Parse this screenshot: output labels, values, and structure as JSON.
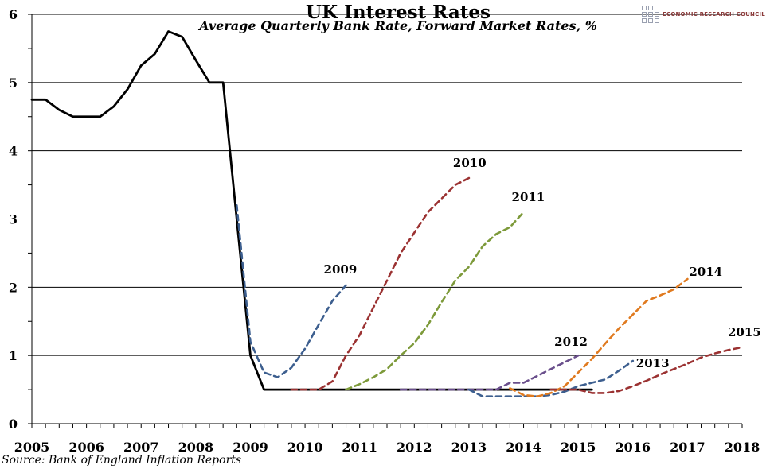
{
  "header": {
    "title": "UK Interest Rates",
    "subtitle": "Average Quarterly Bank Rate, Forward Market Rates, %",
    "logo_text": "ECONOMIC RESEARCH COUNCIL"
  },
  "footer": {
    "source": "Source: Bank of England Inflation Reports"
  },
  "chart_data": {
    "type": "line",
    "title": "UK Interest Rates",
    "subtitle": "Average Quarterly Bank Rate, Forward Market Rates, %",
    "xlabel": "",
    "ylabel": "",
    "xlim": [
      2005,
      2018
    ],
    "ylim": [
      0,
      6
    ],
    "x_ticks": [
      "2005",
      "2006",
      "2007",
      "2008",
      "2009",
      "2010",
      "2011",
      "2012",
      "2013",
      "2014",
      "2015",
      "2016",
      "2017",
      "2018"
    ],
    "y_ticks": [
      "0",
      "1",
      "2",
      "3",
      "4",
      "5",
      "6"
    ],
    "grid": "horizontal",
    "legend": "none",
    "series": [
      {
        "name": "",
        "style": "solid",
        "color": "#000000",
        "x": [
          2005.0,
          2005.25,
          2005.5,
          2005.75,
          2006.0,
          2006.25,
          2006.5,
          2006.75,
          2007.0,
          2007.25,
          2007.5,
          2007.75,
          2008.0,
          2008.25,
          2008.5,
          2008.75,
          2009.0,
          2009.25,
          2009.5,
          2009.75,
          2010.0,
          2010.25,
          2010.5,
          2010.75,
          2011.0,
          2011.25,
          2011.5,
          2011.75,
          2012.0,
          2012.25,
          2012.5,
          2012.75,
          2013.0,
          2013.25,
          2013.5,
          2013.75,
          2014.0,
          2014.25,
          2014.5,
          2014.75,
          2015.0,
          2015.25
        ],
        "y": [
          4.75,
          4.75,
          4.6,
          4.5,
          4.5,
          4.5,
          4.65,
          4.9,
          5.25,
          5.42,
          5.75,
          5.67,
          5.33,
          5.0,
          5.0,
          3.0,
          1.0,
          0.5,
          0.5,
          0.5,
          0.5,
          0.5,
          0.5,
          0.5,
          0.5,
          0.5,
          0.5,
          0.5,
          0.5,
          0.5,
          0.5,
          0.5,
          0.5,
          0.5,
          0.5,
          0.5,
          0.5,
          0.5,
          0.5,
          0.5,
          0.5,
          0.5
        ]
      },
      {
        "name": "2009",
        "style": "dashed",
        "color": "#3d5f8f",
        "x": [
          2008.75,
          2009.0,
          2009.25,
          2009.5,
          2009.75,
          2010.0,
          2010.25,
          2010.5,
          2010.75
        ],
        "y": [
          3.2,
          1.2,
          0.75,
          0.68,
          0.82,
          1.1,
          1.45,
          1.8,
          2.03
        ]
      },
      {
        "name": "2010",
        "style": "dashed",
        "color": "#9b3232",
        "x": [
          2009.75,
          2010.0,
          2010.25,
          2010.5,
          2010.75,
          2011.0,
          2011.25,
          2011.5,
          2011.75,
          2012.0,
          2012.25,
          2012.5,
          2012.75,
          2013.0
        ],
        "y": [
          0.5,
          0.5,
          0.5,
          0.62,
          1.0,
          1.3,
          1.7,
          2.1,
          2.5,
          2.8,
          3.1,
          3.3,
          3.5,
          3.6
        ]
      },
      {
        "name": "2011",
        "style": "dashed",
        "color": "#7d9a3a",
        "x": [
          2010.75,
          2011.0,
          2011.25,
          2011.5,
          2011.75,
          2012.0,
          2012.25,
          2012.5,
          2012.75,
          2013.0,
          2013.25,
          2013.5,
          2013.75,
          2014.0
        ],
        "y": [
          0.5,
          0.58,
          0.68,
          0.8,
          1.0,
          1.18,
          1.45,
          1.78,
          2.1,
          2.3,
          2.6,
          2.78,
          2.88,
          3.1
        ]
      },
      {
        "name": "2012",
        "style": "dashed",
        "color": "#6a4f8c",
        "x": [
          2011.75,
          2012.0,
          2012.25,
          2012.5,
          2012.75,
          2013.0,
          2013.25,
          2013.5,
          2013.75,
          2014.0,
          2014.25,
          2014.5,
          2014.75,
          2015.0
        ],
        "y": [
          0.5,
          0.5,
          0.5,
          0.5,
          0.5,
          0.5,
          0.5,
          0.5,
          0.6,
          0.6,
          0.7,
          0.8,
          0.9,
          1.0
        ]
      },
      {
        "name": "2013",
        "style": "dashed",
        "color": "#3d5f8f",
        "x": [
          2013.0,
          2013.25,
          2013.5,
          2013.75,
          2014.0,
          2014.25,
          2014.5,
          2014.75,
          2015.0,
          2015.25,
          2015.5,
          2015.75,
          2016.0
        ],
        "y": [
          0.5,
          0.4,
          0.4,
          0.4,
          0.4,
          0.4,
          0.42,
          0.47,
          0.55,
          0.6,
          0.65,
          0.78,
          0.92
        ]
      },
      {
        "name": "2014",
        "style": "dashed",
        "color": "#e07a1f",
        "x": [
          2013.75,
          2014.0,
          2014.25,
          2014.5,
          2014.75,
          2015.0,
          2015.25,
          2015.5,
          2015.75,
          2016.0,
          2016.25,
          2016.5,
          2016.75,
          2017.0
        ],
        "y": [
          0.52,
          0.42,
          0.4,
          0.45,
          0.55,
          0.75,
          0.95,
          1.18,
          1.4,
          1.6,
          1.8,
          1.88,
          1.97,
          2.12
        ]
      },
      {
        "name": "2015",
        "style": "dashed",
        "color": "#9b3232",
        "x": [
          2014.5,
          2014.75,
          2015.0,
          2015.25,
          2015.5,
          2015.75,
          2016.0,
          2016.25,
          2016.5,
          2016.75,
          2017.0,
          2017.25,
          2017.5,
          2017.75,
          2018.0
        ],
        "y": [
          0.5,
          0.5,
          0.5,
          0.45,
          0.45,
          0.48,
          0.55,
          0.63,
          0.72,
          0.8,
          0.88,
          0.97,
          1.03,
          1.08,
          1.12
        ]
      }
    ]
  }
}
